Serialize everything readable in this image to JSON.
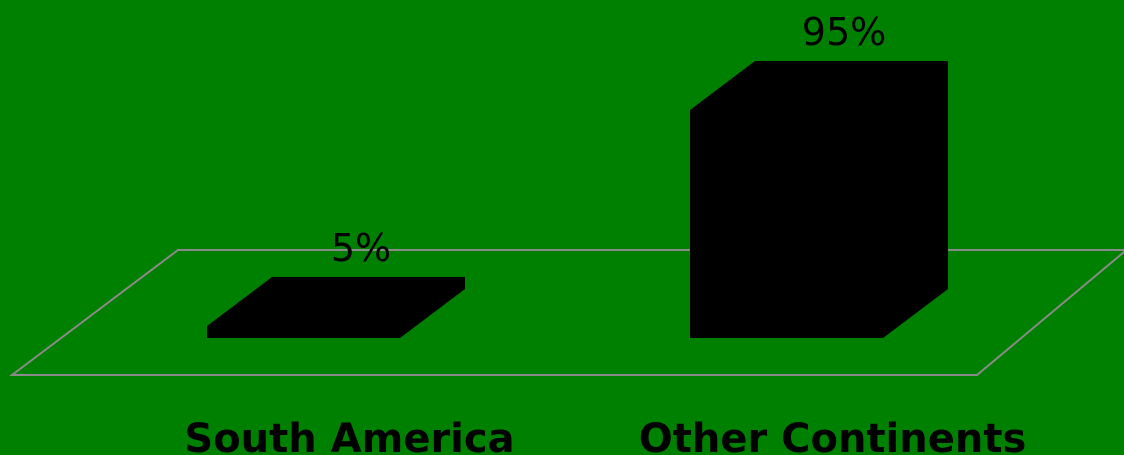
{
  "chart_data": {
    "type": "bar3d",
    "categories": [
      "South America",
      "Other Continents"
    ],
    "values": [
      5,
      95
    ],
    "value_labels": [
      "5%",
      "95%"
    ],
    "color": "#000000"
  }
}
